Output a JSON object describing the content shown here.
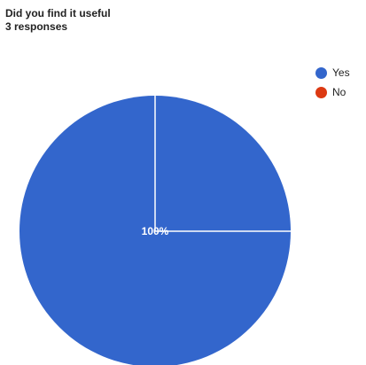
{
  "chart_data": {
    "type": "pie",
    "title": "Did you find it useful",
    "subtitle": "3 responses",
    "categories": [
      "Yes",
      "No"
    ],
    "values": [
      3,
      0
    ],
    "colors": [
      "#3366cc",
      "#dc3912"
    ],
    "slice_labels": [
      "100%"
    ],
    "legend_position": "right"
  }
}
